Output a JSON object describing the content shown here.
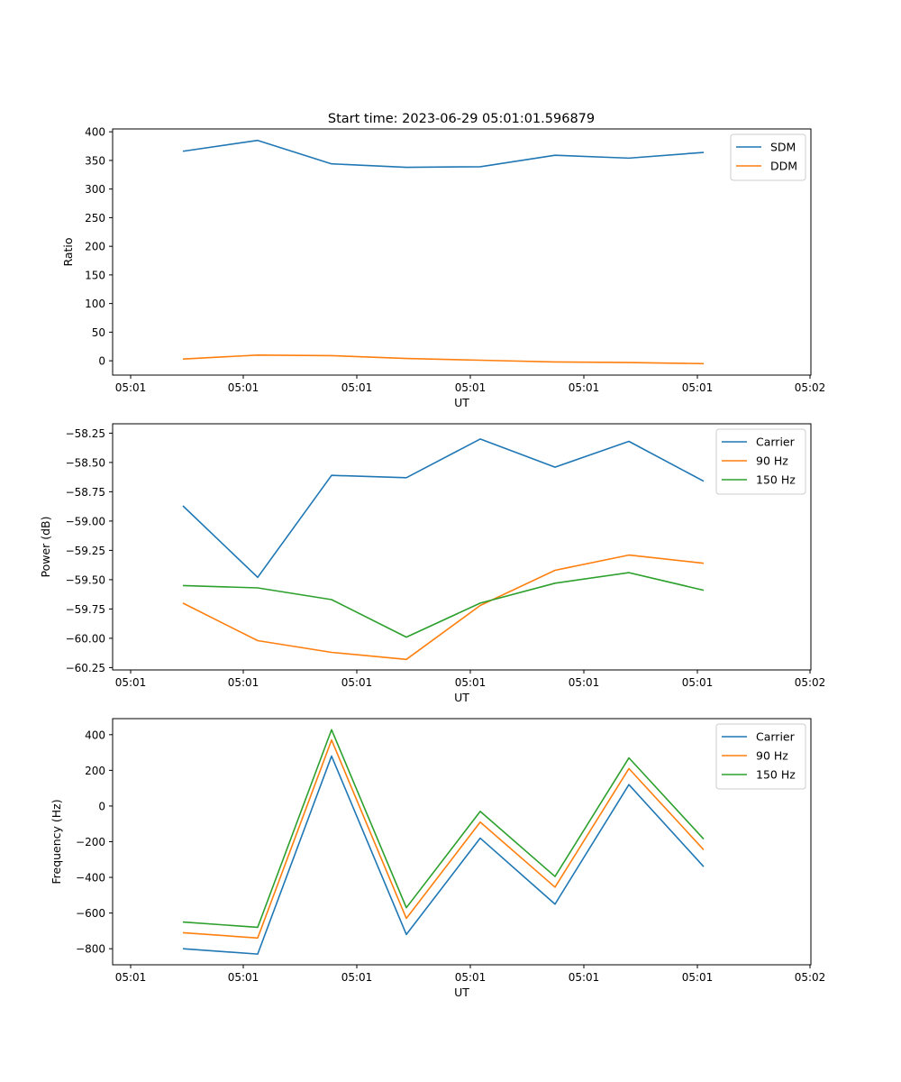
{
  "figure": {
    "title": "Start time: 2023-06-29 05:01:01.596879"
  },
  "chart_data": [
    {
      "type": "line",
      "xlabel": "UT",
      "ylabel": "Ratio",
      "x_tick_labels": [
        "05:01",
        "05:01",
        "05:01",
        "05:01",
        "05:01",
        "05:01",
        "05:02"
      ],
      "ylim": [
        -25,
        405
      ],
      "y_ticks": [
        0,
        50,
        100,
        150,
        200,
        250,
        300,
        350,
        400
      ],
      "y_tick_labels": [
        "0",
        "50",
        "100",
        "150",
        "200",
        "250",
        "300",
        "350",
        "400"
      ],
      "legend": "top-right",
      "series": [
        {
          "name": "SDM",
          "color": "#1f77b4",
          "values": [
            366,
            385,
            344,
            338,
            339,
            359,
            354,
            364
          ]
        },
        {
          "name": "DDM",
          "color": "#ff7f0e",
          "values": [
            3,
            10,
            9,
            4,
            1,
            -2,
            -3,
            -5
          ]
        }
      ]
    },
    {
      "type": "line",
      "xlabel": "UT",
      "ylabel": "Power (dB)",
      "x_tick_labels": [
        "05:01",
        "05:01",
        "05:01",
        "05:01",
        "05:01",
        "05:01",
        "05:02"
      ],
      "ylim": [
        -60.27,
        -58.17
      ],
      "y_ticks": [
        -60.25,
        -60.0,
        -59.75,
        -59.5,
        -59.25,
        -59.0,
        -58.75,
        -58.5,
        -58.25
      ],
      "y_tick_labels": [
        "−60.25",
        "−60.00",
        "−59.75",
        "−59.50",
        "−59.25",
        "−59.00",
        "−58.75",
        "−58.50",
        "−58.25"
      ],
      "legend": "top-right",
      "series": [
        {
          "name": "Carrier",
          "color": "#1f77b4",
          "values": [
            -58.87,
            -59.48,
            -58.61,
            -58.63,
            -58.3,
            -58.54,
            -58.32,
            -58.66
          ]
        },
        {
          "name": "90 Hz",
          "color": "#ff7f0e",
          "values": [
            -59.7,
            -60.02,
            -60.12,
            -60.18,
            -59.72,
            -59.42,
            -59.29,
            -59.36
          ]
        },
        {
          "name": "150 Hz",
          "color": "#2ca02c",
          "values": [
            -59.55,
            -59.57,
            -59.67,
            -59.99,
            -59.7,
            -59.53,
            -59.44,
            -59.59
          ]
        }
      ]
    },
    {
      "type": "line",
      "xlabel": "UT",
      "ylabel": "Frequency (Hz)",
      "x_tick_labels": [
        "05:01",
        "05:01",
        "05:01",
        "05:01",
        "05:01",
        "05:01",
        "05:02"
      ],
      "ylim": [
        -890,
        490
      ],
      "y_ticks": [
        -800,
        -600,
        -400,
        -200,
        0,
        200,
        400
      ],
      "y_tick_labels": [
        "−800",
        "−600",
        "−400",
        "−200",
        "0",
        "200",
        "400"
      ],
      "legend": "top-right",
      "series": [
        {
          "name": "Carrier",
          "color": "#1f77b4",
          "values": [
            -800,
            -830,
            280,
            -720,
            -180,
            -550,
            120,
            -340
          ]
        },
        {
          "name": "90 Hz",
          "color": "#ff7f0e",
          "values": [
            -710,
            -740,
            370,
            -630,
            -90,
            -455,
            210,
            -245
          ]
        },
        {
          "name": "150 Hz",
          "color": "#2ca02c",
          "values": [
            -650,
            -680,
            428,
            -570,
            -30,
            -395,
            270,
            -185
          ]
        }
      ]
    }
  ]
}
